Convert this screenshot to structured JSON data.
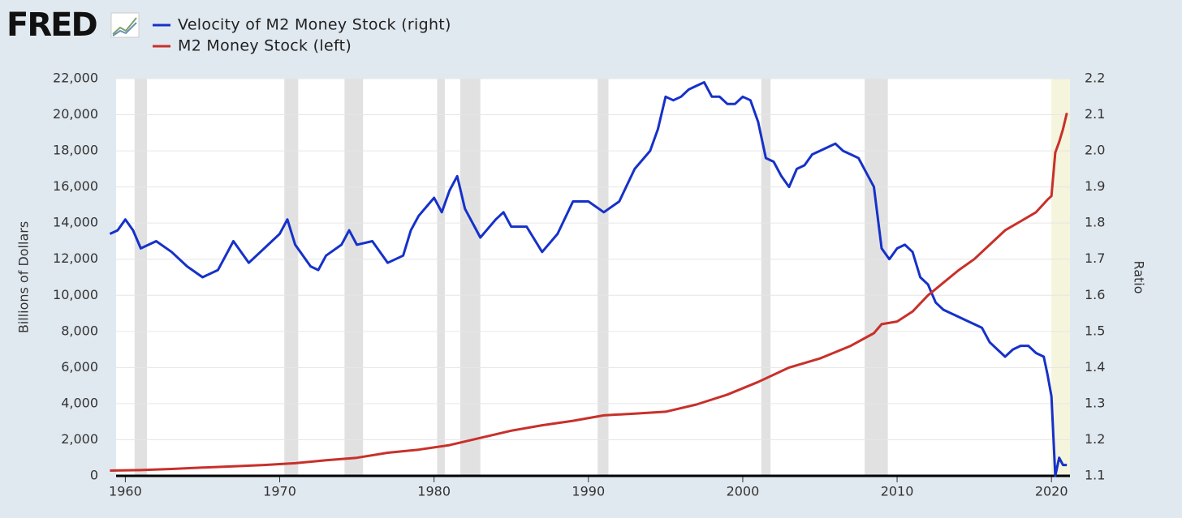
{
  "logo": "FRED",
  "chart_data": {
    "type": "line",
    "y_title": "Billions of Dollars",
    "y2_title": "Ratio",
    "xlim": [
      1959.4,
      2021.2
    ],
    "xticks": [
      1960,
      1970,
      1980,
      1990,
      2000,
      2010,
      2020
    ],
    "ylim": [
      0,
      22000
    ],
    "yticks": [
      0,
      {
        "value": 2000,
        "label": "2,000"
      },
      {
        "value": 4000,
        "label": "4,000"
      },
      {
        "value": 6000,
        "label": "6,000"
      },
      {
        "value": 8000,
        "label": "8,000"
      },
      {
        "value": 10000,
        "label": "10,000"
      },
      {
        "value": 12000,
        "label": "12,000"
      },
      {
        "value": 14000,
        "label": "14,000"
      },
      {
        "value": 16000,
        "label": "16,000"
      },
      {
        "value": 18000,
        "label": "18,000"
      },
      {
        "value": 20000,
        "label": "20,000"
      },
      {
        "value": 22000,
        "label": "22,000"
      }
    ],
    "y2lim": [
      1.1,
      2.2
    ],
    "y2ticks": [
      1.1,
      1.2,
      1.3,
      1.4,
      1.5,
      1.6,
      1.7,
      1.8,
      1.9,
      {
        "value": 2,
        "label": "2.0"
      },
      2.1,
      2.2
    ],
    "grid": true,
    "recessions": [
      [
        1960.6,
        1961.4
      ],
      [
        1970.3,
        1971.2
      ],
      [
        1974.2,
        1975.4
      ],
      [
        1980.2,
        1980.7
      ],
      [
        1981.7,
        1983.0
      ],
      [
        1990.6,
        1991.3
      ],
      [
        2001.2,
        2001.8
      ],
      [
        2007.9,
        2009.4
      ]
    ],
    "highlight": [
      2020.0,
      2021.2
    ],
    "series": [
      {
        "name": "Velocity of M2 Money Stock (right)",
        "color": "#1631c9",
        "axis": "y2",
        "x": [
          1959.0,
          1959.5,
          1960.0,
          1960.5,
          1961.0,
          1962.0,
          1963.0,
          1964.0,
          1965.0,
          1966.0,
          1967.0,
          1968.0,
          1969.0,
          1970.0,
          1970.5,
          1971.0,
          1972.0,
          1972.5,
          1973.0,
          1974.0,
          1974.5,
          1975.0,
          1976.0,
          1977.0,
          1978.0,
          1978.5,
          1979.0,
          1980.0,
          1980.5,
          1981.0,
          1981.5,
          1982.0,
          1983.0,
          1984.0,
          1984.5,
          1985.0,
          1986.0,
          1987.0,
          1988.0,
          1989.0,
          1990.0,
          1991.0,
          1992.0,
          1993.0,
          1994.0,
          1994.5,
          1995.0,
          1995.5,
          1996.0,
          1996.5,
          1997.0,
          1997.5,
          1998.0,
          1998.5,
          1999.0,
          1999.5,
          2000.0,
          2000.5,
          2001.0,
          2001.5,
          2002.0,
          2002.5,
          2003.0,
          2003.5,
          2004.0,
          2004.5,
          2005.0,
          2006.0,
          2006.5,
          2007.0,
          2007.5,
          2008.0,
          2008.5,
          2009.0,
          2009.5,
          2010.0,
          2010.5,
          2011.0,
          2011.5,
          2012.0,
          2012.5,
          2013.0,
          2014.0,
          2014.5,
          2015.0,
          2015.5,
          2016.0,
          2016.5,
          2017.0,
          2017.5,
          2018.0,
          2018.5,
          2019.0,
          2019.5,
          2019.75,
          2020.0,
          2020.25,
          2020.5,
          2020.75,
          2021.0
        ],
        "values": [
          1.77,
          1.78,
          1.81,
          1.78,
          1.73,
          1.75,
          1.72,
          1.68,
          1.65,
          1.67,
          1.75,
          1.69,
          1.73,
          1.77,
          1.81,
          1.74,
          1.68,
          1.67,
          1.71,
          1.74,
          1.78,
          1.74,
          1.75,
          1.69,
          1.71,
          1.78,
          1.82,
          1.87,
          1.83,
          1.89,
          1.93,
          1.84,
          1.76,
          1.81,
          1.83,
          1.79,
          1.79,
          1.72,
          1.77,
          1.86,
          1.86,
          1.83,
          1.86,
          1.95,
          2.0,
          2.06,
          2.15,
          2.14,
          2.15,
          2.17,
          2.18,
          2.19,
          2.15,
          2.15,
          2.13,
          2.13,
          2.15,
          2.14,
          2.08,
          1.98,
          1.97,
          1.93,
          1.9,
          1.95,
          1.96,
          1.99,
          2.0,
          2.02,
          2.0,
          1.99,
          1.98,
          1.94,
          1.9,
          1.73,
          1.7,
          1.73,
          1.74,
          1.72,
          1.65,
          1.63,
          1.58,
          1.56,
          1.54,
          1.53,
          1.52,
          1.51,
          1.47,
          1.45,
          1.43,
          1.45,
          1.46,
          1.46,
          1.44,
          1.43,
          1.38,
          1.32,
          1.1,
          1.15,
          1.13,
          1.13
        ]
      },
      {
        "name": "M2 Money Stock (left)",
        "color": "#c8302a",
        "x": [
          1959.0,
          1961.0,
          1963.0,
          1965.0,
          1967.0,
          1969.0,
          1971.0,
          1973.0,
          1975.0,
          1977.0,
          1979.0,
          1981.0,
          1983.0,
          1985.0,
          1987.0,
          1989.0,
          1991.0,
          1993.0,
          1995.0,
          1997.0,
          1999.0,
          2001.0,
          2003.0,
          2005.0,
          2007.0,
          2008.5,
          2009.0,
          2010.0,
          2011.0,
          2012.0,
          2013.0,
          2014.0,
          2015.0,
          2016.0,
          2017.0,
          2018.0,
          2019.0,
          2019.75,
          2020.0,
          2020.25,
          2020.5,
          2020.75,
          2021.0
        ],
        "values": [
          290,
          320,
          380,
          460,
          530,
          600,
          700,
          860,
          1000,
          1280,
          1450,
          1700,
          2100,
          2500,
          2800,
          3050,
          3350,
          3450,
          3550,
          3950,
          4500,
          5200,
          6000,
          6500,
          7200,
          7900,
          8400,
          8550,
          9100,
          10000,
          10700,
          11400,
          12000,
          12800,
          13600,
          14100,
          14600,
          15300,
          15500,
          17900,
          18500,
          19200,
          20100
        ]
      }
    ]
  }
}
